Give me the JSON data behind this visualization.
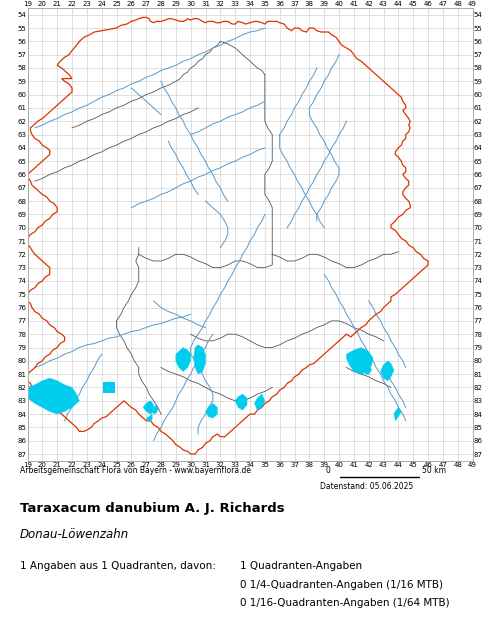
{
  "title": "Taraxacum danubium A. J. Richards",
  "subtitle": "Donau-Löwenzahn",
  "attribution": "Arbeitsgemeinschaft Flora von Bayern - www.bayernflora.de",
  "date_label": "Datenstand: 05.06.2025",
  "stats_line": "1 Angaben aus 1 Quadranten, davon:",
  "stat1": "1 Quadranten-Angaben",
  "stat2": "0 1/4-Quadranten-Angaben (1/16 MTB)",
  "stat3": "0 1/16-Quadranten-Angaben (1/64 MTB)",
  "x_min": 19,
  "x_max": 49,
  "y_min": 54,
  "y_max": 87,
  "bg_color": "#ffffff",
  "grid_color": "#c8c8c8",
  "border_color_outer": "#dd3300",
  "border_color_inner": "#555555",
  "river_color": "#5599cc",
  "water_fill_color": "#00ccee",
  "dot_color": "#00ccee",
  "map_bg": "#ffffff"
}
